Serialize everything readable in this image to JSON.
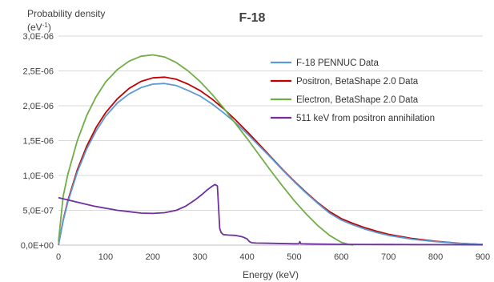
{
  "chart_data": {
    "type": "line",
    "title": "F-18",
    "xlabel": "Energy (keV)",
    "ylabel": "Probability density",
    "ylabel_unit_base": "(eV",
    "ylabel_unit_exp": "-1",
    "ylabel_unit_close": ")",
    "xlim": [
      0,
      900
    ],
    "ylim": [
      0,
      3e-06
    ],
    "grid": true,
    "legend_position": "top-right",
    "x_ticks": [
      "0",
      "100",
      "200",
      "300",
      "400",
      "500",
      "600",
      "700",
      "800",
      "900"
    ],
    "x_tick_values": [
      0,
      100,
      200,
      300,
      400,
      500,
      600,
      700,
      800,
      900
    ],
    "y_ticks": [
      "0,0E+00",
      "5,0E-07",
      "1,0E-06",
      "1,5E-06",
      "2,0E-06",
      "2,5E-06",
      "3,0E-06"
    ],
    "y_tick_values": [
      0,
      5e-07,
      1e-06,
      1.5e-06,
      2e-06,
      2.5e-06,
      3e-06
    ],
    "series": [
      {
        "name": "F-18 PENNUC Data",
        "color": "#5b9bd5",
        "x": [
          0,
          10,
          20,
          40,
          60,
          80,
          100,
          125,
          150,
          175,
          200,
          225,
          250,
          275,
          300,
          325,
          350,
          375,
          400,
          425,
          450,
          475,
          500,
          525,
          550,
          575,
          600,
          625,
          650,
          675,
          700,
          750,
          800,
          850,
          900
        ],
        "y": [
          0.0,
          3.5e-07,
          6.2e-07,
          1.05e-06,
          1.38e-06,
          1.64e-06,
          1.85e-06,
          2.04e-06,
          2.17e-06,
          2.26e-06,
          2.31e-06,
          2.32e-06,
          2.29e-06,
          2.22e-06,
          2.14e-06,
          2.03e-06,
          1.9e-06,
          1.76e-06,
          1.6e-06,
          1.43e-06,
          1.26e-06,
          1.08e-06,
          9.1e-07,
          7.5e-07,
          6e-07,
          4.6e-07,
          3.6e-07,
          2.9e-07,
          2.3e-07,
          1.8e-07,
          1.4e-07,
          8.5e-08,
          5e-08,
          2.5e-08,
          1e-08
        ]
      },
      {
        "name": "Positron, BetaShape 2.0 Data",
        "color": "#c00000",
        "x": [
          0,
          10,
          20,
          40,
          60,
          80,
          100,
          125,
          150,
          175,
          200,
          225,
          250,
          275,
          300,
          325,
          350,
          375,
          400,
          425,
          450,
          475,
          500,
          525,
          550,
          575,
          600,
          625,
          650,
          675,
          700,
          750,
          800,
          850,
          900
        ],
        "y": [
          0.0,
          3.6e-07,
          6.4e-07,
          1.08e-06,
          1.42e-06,
          1.69e-06,
          1.9e-06,
          2.1e-06,
          2.25e-06,
          2.35e-06,
          2.4e-06,
          2.41e-06,
          2.38e-06,
          2.31e-06,
          2.22e-06,
          2.1e-06,
          1.96e-06,
          1.8e-06,
          1.63e-06,
          1.45e-06,
          1.27e-06,
          1.09e-06,
          9.2e-07,
          7.6e-07,
          6.1e-07,
          4.8e-07,
          3.8e-07,
          3.1e-07,
          2.5e-07,
          2e-07,
          1.55e-07,
          9.5e-08,
          5.5e-08,
          2.8e-08,
          1e-08
        ]
      },
      {
        "name": "Electron, BetaShape 2.0 Data",
        "color": "#70ad47",
        "x": [
          0,
          10,
          20,
          40,
          60,
          80,
          100,
          125,
          150,
          175,
          200,
          225,
          250,
          275,
          300,
          325,
          350,
          375,
          400,
          425,
          450,
          475,
          500,
          525,
          550,
          575,
          600,
          615,
          625
        ],
        "y": [
          5e-08,
          7e-07,
          1.02e-06,
          1.5e-06,
          1.86e-06,
          2.13e-06,
          2.34e-06,
          2.52e-06,
          2.64e-06,
          2.71e-06,
          2.73e-06,
          2.7e-06,
          2.62e-06,
          2.5e-06,
          2.35e-06,
          2.17e-06,
          1.97e-06,
          1.75e-06,
          1.53e-06,
          1.3e-06,
          1.07e-06,
          8.5e-07,
          6.4e-07,
          4.5e-07,
          2.8e-07,
          1.4e-07,
          4e-08,
          1e-08,
          0.0
        ]
      },
      {
        "name": "511 keV from positron annihilation",
        "color": "#7030a0",
        "x": [
          0,
          25,
          50,
          75,
          100,
          125,
          150,
          175,
          200,
          225,
          250,
          270,
          290,
          305,
          315,
          325,
          332,
          337,
          340,
          342,
          345,
          350,
          360,
          375,
          390,
          400,
          405,
          410,
          420,
          450,
          500,
          510,
          512,
          514,
          520,
          550,
          600,
          650,
          700,
          750,
          800,
          850,
          900
        ],
        "y": [
          6.8e-07,
          6.4e-07,
          6e-07,
          5.6e-07,
          5.3e-07,
          5e-07,
          4.8e-07,
          4.6e-07,
          4.55e-07,
          4.65e-07,
          5e-07,
          5.6e-07,
          6.5e-07,
          7.3e-07,
          7.9e-07,
          8.4e-07,
          8.7e-07,
          8.5e-07,
          5e-07,
          2.4e-07,
          1.8e-07,
          1.5e-07,
          1.45e-07,
          1.4e-07,
          1.2e-07,
          9e-08,
          5e-08,
          3.5e-08,
          3e-08,
          2.6e-08,
          2e-08,
          2e-08,
          5e-08,
          2e-08,
          1.8e-08,
          1.5e-08,
          1.2e-08,
          1e-08,
          9e-09,
          8e-09,
          7e-09,
          6e-09,
          5e-09
        ]
      }
    ]
  }
}
